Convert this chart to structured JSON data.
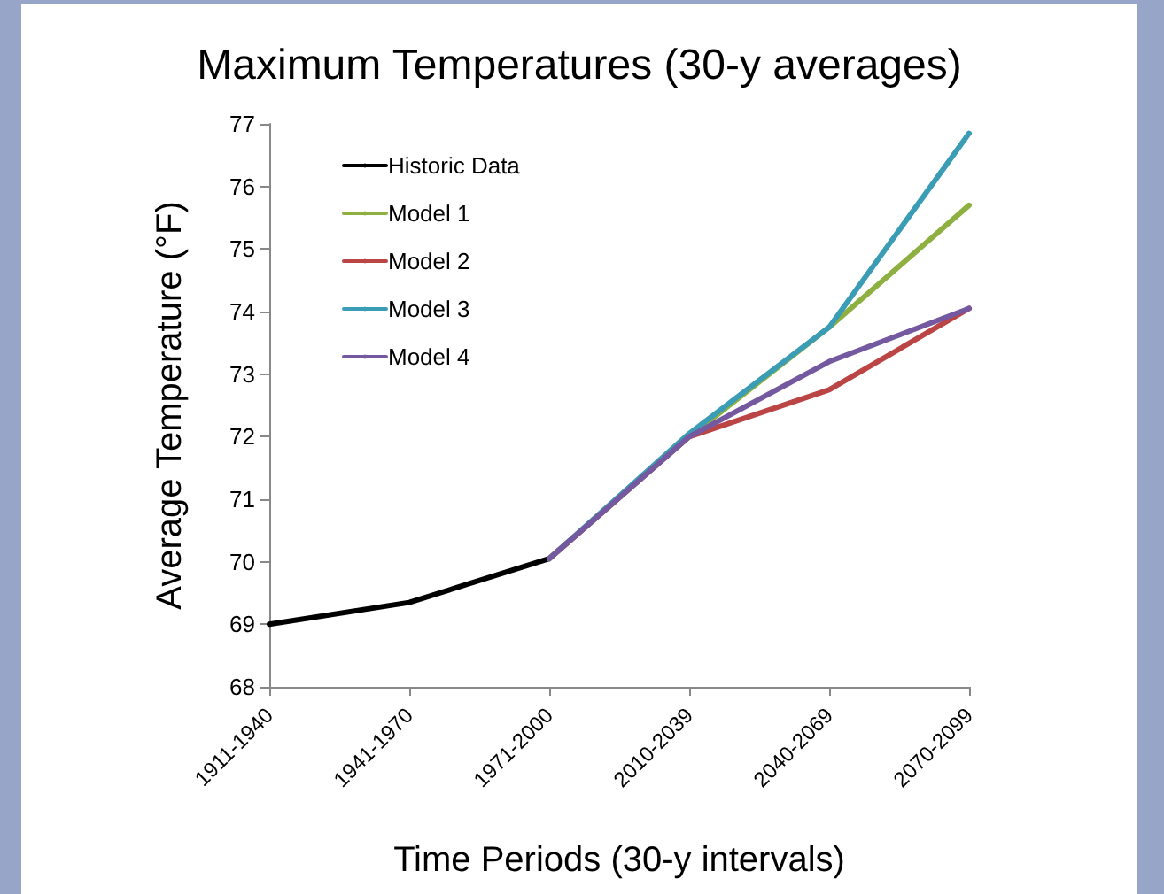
{
  "chart_data": {
    "type": "line",
    "title": "Maximum Temperatures (30-y averages)",
    "xlabel": "Time Periods (30-y intervals)",
    "ylabel": "Average Temperature (°F)",
    "categories": [
      "1911-1940",
      "1941-1970",
      "1971-2000",
      "2010-2039",
      "2040-2069",
      "2070-2099"
    ],
    "series": [
      {
        "name": "Historic Data",
        "color": "#000000",
        "values": [
          69.0,
          69.35,
          70.05,
          null,
          null,
          null
        ]
      },
      {
        "name": "Model 1",
        "color": "#8db040",
        "values": [
          null,
          null,
          70.05,
          72.0,
          73.75,
          75.7
        ]
      },
      {
        "name": "Model 2",
        "color": "#bb4444",
        "values": [
          null,
          null,
          70.05,
          72.0,
          72.75,
          74.05
        ]
      },
      {
        "name": "Model 3",
        "color": "#3b9db5",
        "values": [
          null,
          null,
          70.05,
          72.05,
          73.75,
          76.85
        ]
      },
      {
        "name": "Model 4",
        "color": "#7459a0",
        "values": [
          null,
          null,
          70.05,
          72.0,
          73.2,
          74.05
        ]
      }
    ],
    "ylim": [
      68,
      77
    ],
    "yticks": [
      68,
      69,
      70,
      71,
      72,
      73,
      74,
      75,
      76,
      77
    ],
    "grid": false,
    "legend": "top left",
    "marker": "none",
    "line_style": "solid"
  }
}
